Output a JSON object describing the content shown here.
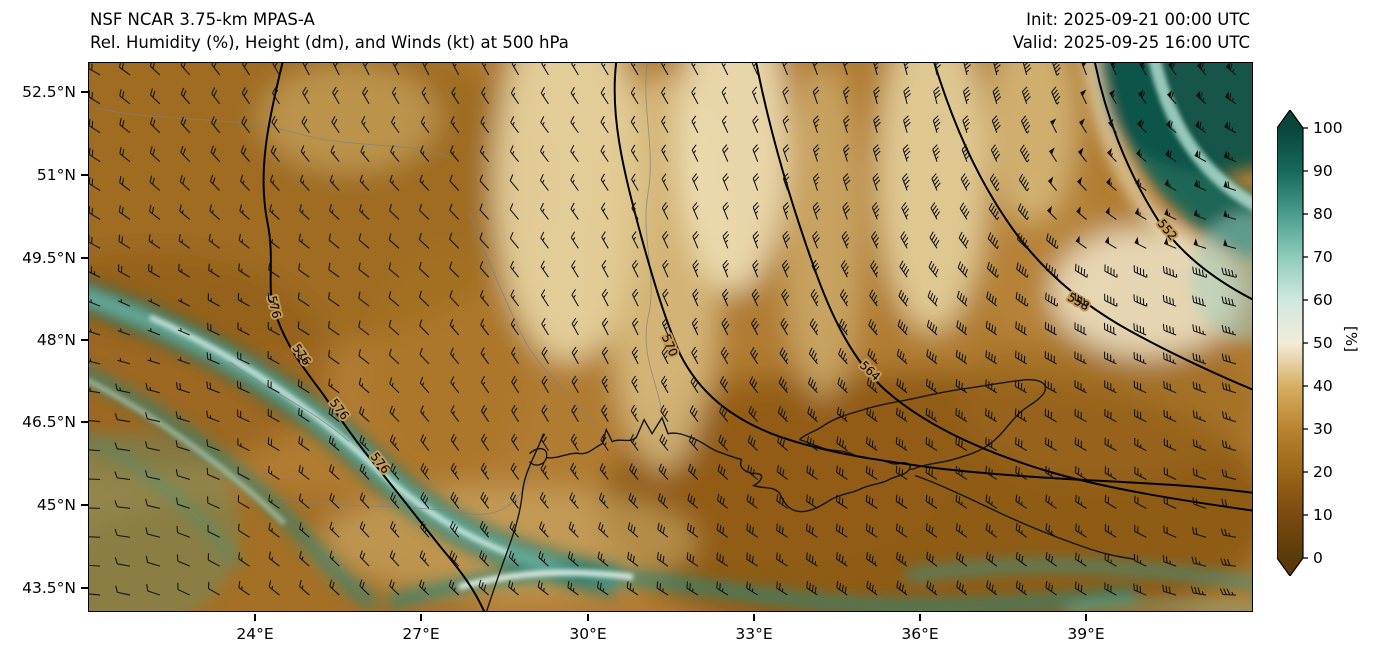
{
  "header": {
    "model": "NSF NCAR 3.75-km MPAS-A",
    "subtitle": "Rel. Humidity (%), Height (dm), and Winds (kt) at 500 hPa",
    "init": "Init: 2025-09-21 00:00 UTC",
    "valid": "Valid: 2025-09-25 16:00 UTC"
  },
  "axes": {
    "y_ticks": [
      "52.5°N",
      "51°N",
      "49.5°N",
      "48°N",
      "46.5°N",
      "45°N",
      "43.5°N"
    ],
    "x_ticks": [
      "24°E",
      "27°E",
      "30°E",
      "33°E",
      "36°E",
      "39°E"
    ]
  },
  "colorbar": {
    "label": "[%]",
    "ticks": [
      "100",
      "90",
      "80",
      "70",
      "60",
      "50",
      "40",
      "30",
      "20",
      "10",
      "0"
    ]
  },
  "contours": {
    "labels_map": {
      "c576": "576",
      "c570": "570",
      "c564": "564",
      "c558": "558",
      "c552": "552"
    }
  },
  "chart_data": {
    "type": "heatmap",
    "title": "Rel. Humidity (%), Height (dm), and Winds (kt) at 500 hPa",
    "model": "NSF NCAR 3.75-km MPAS-A",
    "init_time": "2025-09-21 00:00 UTC",
    "valid_time": "2025-09-25 16:00 UTC",
    "level_hpa": 500,
    "x_axis": {
      "label": "longitude",
      "tick_labels": [
        "24°E",
        "27°E",
        "30°E",
        "33°E",
        "36°E",
        "39°E"
      ],
      "range_deg_e": [
        21,
        42
      ]
    },
    "y_axis": {
      "label": "latitude",
      "tick_labels": [
        "52.5°N",
        "51°N",
        "49.5°N",
        "48°N",
        "46.5°N",
        "45°N",
        "43.5°N"
      ],
      "range_deg_n": [
        43,
        53.1
      ]
    },
    "colorbar": {
      "label": "[%]",
      "min": 0,
      "max": 100,
      "tick_step": 10,
      "palette_stops": [
        {
          "v": 100,
          "c": "#0a453a"
        },
        {
          "v": 90,
          "c": "#17695c"
        },
        {
          "v": 80,
          "c": "#4a9d8d"
        },
        {
          "v": 70,
          "c": "#8ecbbb"
        },
        {
          "v": 60,
          "c": "#cfe8df"
        },
        {
          "v": 50,
          "c": "#f2ecd8"
        },
        {
          "v": 40,
          "c": "#d7af62"
        },
        {
          "v": 30,
          "c": "#b98430"
        },
        {
          "v": 20,
          "c": "#9a6618"
        },
        {
          "v": 10,
          "c": "#7b4a10"
        },
        {
          "v": 0,
          "c": "#5a3a0a"
        }
      ]
    },
    "height_contours_dm": [
      552,
      558,
      564,
      570,
      576
    ],
    "wind_barbs_units": "kt",
    "features": [
      "mostly dry mid-troposphere (RH 10-35%, browns) over the domain",
      "moist band (RH 70-100%, teal) sweeping from the west edge near 48N southeast to ~29E at the south edge",
      "moist band along the southern edge between ~29E and 42E",
      "very moist region (RH > 80%) in the northeast corner",
      "500-hPa heights fall from 576 dm in the southwest to 552 dm toward the northeast (trough)",
      "wind barbs (kt) on a regular grid over the full domain, with calm circles near the west edge",
      "Black Sea, Crimea and Sea of Azov coastlines drawn in black"
    ]
  }
}
